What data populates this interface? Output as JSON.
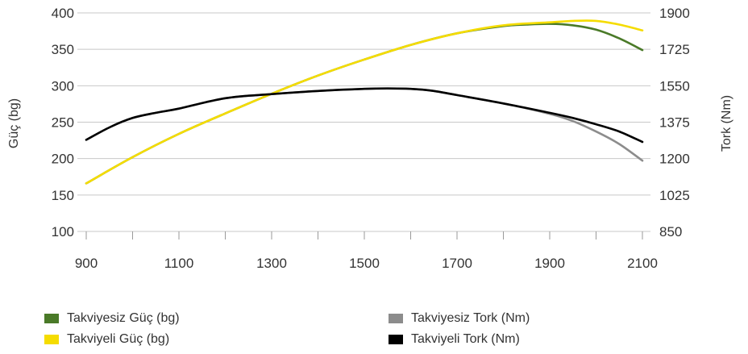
{
  "chart_data": {
    "type": "line",
    "x_ticks": [
      "900",
      "1100",
      "1300",
      "1500",
      "1700",
      "1900",
      "2100"
    ],
    "xlim": [
      900,
      2100
    ],
    "y_left": {
      "label": "Güç (bg)",
      "ticks": [
        "100",
        "150",
        "200",
        "250",
        "300",
        "350",
        "400"
      ],
      "lim": [
        100,
        400
      ]
    },
    "y_right": {
      "label": "Tork (Nm)",
      "ticks": [
        "850",
        "1025",
        "1200",
        "1375",
        "1550",
        "1725",
        "1900"
      ],
      "lim": [
        850,
        1900
      ]
    },
    "grid": "horizontal",
    "series": [
      {
        "name": "Takviyesiz Güç (bg)",
        "axis": "left",
        "color": "#4a7a28",
        "x": [
          900,
          1000,
          1100,
          1200,
          1300,
          1400,
          1500,
          1600,
          1700,
          1800,
          1850,
          1900,
          1950,
          2000,
          2050,
          2100
        ],
        "y": [
          166,
          202,
          234,
          262,
          289,
          314,
          336,
          356,
          372,
          382,
          384,
          385,
          383,
          377,
          365,
          349
        ]
      },
      {
        "name": "Takviyeli Güç (bg)",
        "axis": "left",
        "color": "#f5dc00",
        "x": [
          900,
          1000,
          1100,
          1200,
          1300,
          1400,
          1500,
          1600,
          1700,
          1800,
          1900,
          1950,
          2000,
          2050,
          2100
        ],
        "y": [
          166,
          202,
          234,
          262,
          289,
          314,
          336,
          356,
          372,
          383,
          387,
          389,
          389,
          384,
          376
        ]
      },
      {
        "name": "Takviyesiz Tork (Nm)",
        "axis": "right",
        "color": "#8c8c8c",
        "x": [
          900,
          950,
          1000,
          1050,
          1100,
          1200,
          1300,
          1400,
          1500,
          1550,
          1600,
          1650,
          1700,
          1800,
          1900,
          1950,
          2000,
          2050,
          2100
        ],
        "y": [
          1290,
          1350,
          1395,
          1420,
          1440,
          1490,
          1510,
          1525,
          1535,
          1537,
          1535,
          1525,
          1505,
          1465,
          1415,
          1380,
          1330,
          1270,
          1190
        ]
      },
      {
        "name": "Takviyeli Tork (Nm)",
        "axis": "right",
        "color": "#000000",
        "x": [
          900,
          950,
          1000,
          1050,
          1100,
          1200,
          1300,
          1400,
          1500,
          1550,
          1600,
          1650,
          1700,
          1800,
          1900,
          1950,
          2000,
          2050,
          2100
        ],
        "y": [
          1290,
          1350,
          1395,
          1420,
          1440,
          1490,
          1510,
          1525,
          1535,
          1537,
          1535,
          1525,
          1505,
          1465,
          1420,
          1395,
          1365,
          1330,
          1280
        ]
      }
    ],
    "legend": {
      "position": "bottom",
      "items": [
        {
          "label": "Takviyesiz Güç (bg)",
          "color": "#4a7a28"
        },
        {
          "label": "Takviyesiz Tork (Nm)",
          "color": "#8c8c8c"
        },
        {
          "label": "Takviyeli Güç (bg)",
          "color": "#f5dc00"
        },
        {
          "label": "Takviyeli Tork (Nm)",
          "color": "#000000"
        }
      ]
    }
  }
}
